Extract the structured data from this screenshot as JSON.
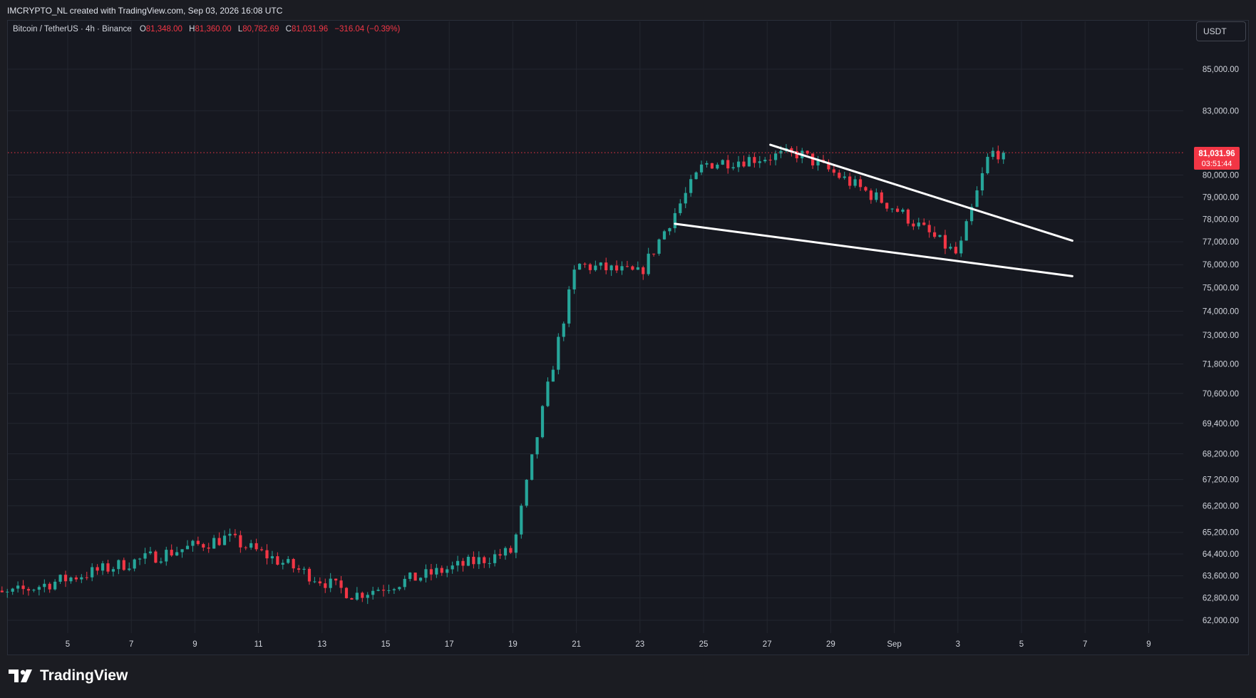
{
  "header": {
    "credit": "IMCRYPTO_NL created with TradingView.com, Sep 03, 2026 16:08 UTC"
  },
  "legend": {
    "symbol": "Bitcoin / TetherUS · 4h · Binance",
    "open_label": "O",
    "open": "81,348.00",
    "high_label": "H",
    "high": "81,360.00",
    "low_label": "L",
    "low": "80,782.69",
    "close_label": "C",
    "close": "81,031.96",
    "change": "−316.04 (−0.39%)"
  },
  "currency_button": "USDT",
  "price_badge": {
    "price": "81,031.96",
    "countdown": "03:51:44"
  },
  "footer": {
    "brand": "TradingView"
  },
  "colors": {
    "up": "#26a69a",
    "down": "#f23645",
    "trendline": "#ffffff",
    "price_line": "#f23645"
  },
  "chart_data": {
    "type": "candlestick",
    "title": "Bitcoin / TetherUS · 4h · Binance",
    "interval": "4h",
    "y_scale": "log",
    "y_ticks": [
      "85,000.00",
      "83,000.00",
      "80,000.00",
      "79,000.00",
      "78,000.00",
      "77,000.00",
      "76,000.00",
      "75,000.00",
      "74,000.00",
      "73,000.00",
      "71,800.00",
      "70,600.00",
      "69,400.00",
      "68,200.00",
      "67,200.00",
      "66,200.00",
      "65,200.00",
      "64,400.00",
      "63,600.00",
      "62,800.00",
      "62,000.00"
    ],
    "x_ticks": [
      "5",
      "7",
      "9",
      "11",
      "13",
      "15",
      "17",
      "19",
      "21",
      "23",
      "25",
      "27",
      "29",
      "Sep",
      "3",
      "5",
      "7",
      "9"
    ],
    "last_price": 81031.96,
    "key_points": [
      {
        "date": "Aug 3",
        "price": 62900
      },
      {
        "date": "Aug 10",
        "price": 65000
      },
      {
        "date": "Aug 14",
        "price": 62900
      },
      {
        "date": "Aug 19",
        "price": 64500
      },
      {
        "date": "Aug 21",
        "price": 76000
      },
      {
        "date": "Aug 23",
        "price": 75600
      },
      {
        "date": "Aug 25",
        "price": 80500
      },
      {
        "date": "Aug 28",
        "price": 81000
      },
      {
        "date": "Aug 31",
        "price": 78500
      },
      {
        "date": "Sep 2",
        "price": 76400
      },
      {
        "date": "Sep 3",
        "price": 81031.96
      }
    ],
    "annotations": [
      {
        "type": "trendline",
        "name": "upper-wedge-line",
        "start": {
          "date": "Aug 27",
          "price": 81400
        },
        "end": {
          "date": "Sep 5",
          "price": 77050
        }
      },
      {
        "type": "trendline",
        "name": "lower-wedge-line",
        "start": {
          "date": "Aug 24",
          "price": 77800
        },
        "end": {
          "date": "Sep 5",
          "price": 75500
        }
      }
    ]
  }
}
